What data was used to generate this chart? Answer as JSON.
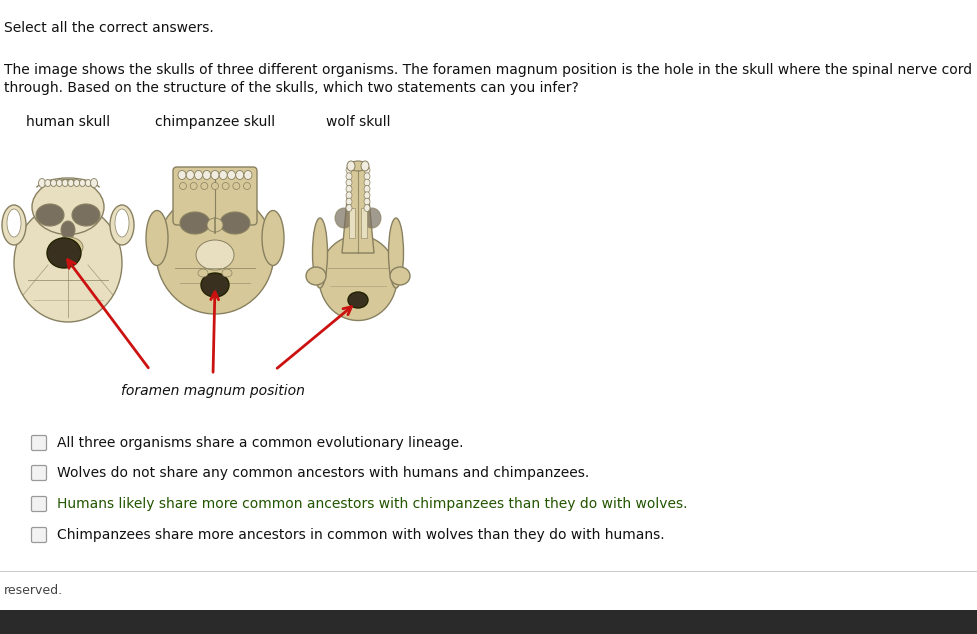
{
  "bg_color": "#ffffff",
  "header_text": "Select all the correct answers.",
  "body_line1": "The image shows the skulls of three different organisms. The foramen magnum position is the hole in the skull where the spinal nerve cord passes",
  "body_line2": "through. Based on the structure of the skulls, which two statements can you infer?",
  "skull_labels": [
    "human skull",
    "chimpanzee skull",
    "wolf skull"
  ],
  "annotation_label": "foramen magnum position",
  "checkbox_options": [
    "All three organisms share a common evolutionary lineage.",
    "Wolves do not share any common ancestors with humans and chimpanzees.",
    "Humans likely share more common ancestors with chimpanzees than they do with wolves.",
    "Chimpanzees share more ancestors in common with wolves than they do with humans."
  ],
  "footer_text": "reserved.",
  "bone_fill": "#e8dfc0",
  "bone_fill2": "#d6c898",
  "bone_edge": "#888060",
  "cavity_fill": "#7a7060",
  "foramen_fill": "#3a3020",
  "arrow_color": "#cc1111",
  "text_color": "#111111",
  "bottom_bar_color": "#2a2a2a",
  "sep_color": "#cccccc",
  "checkbox_edge": "#999999",
  "checkbox_fill": "#f2f2f2",
  "footer_color": "#444444",
  "highlight_green": "#225500"
}
